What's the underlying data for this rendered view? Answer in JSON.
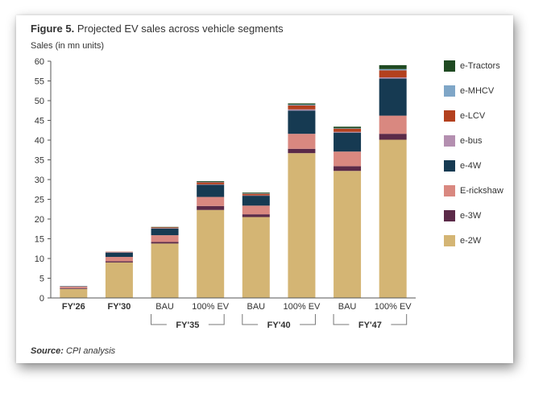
{
  "figure": {
    "label": "Figure 5.",
    "title": "Projected EV sales across vehicle segments"
  },
  "source": {
    "label": "Source:",
    "text": "CPI analysis"
  },
  "chart_data": {
    "type": "bar",
    "stacked": true,
    "title": "Figure 5. Projected EV sales across vehicle segments",
    "ylabel": "Sales (in mn units)",
    "xlabel": "",
    "ylim": [
      0,
      60
    ],
    "yticks": [
      0,
      5,
      10,
      15,
      20,
      25,
      30,
      35,
      40,
      45,
      50,
      55,
      60
    ],
    "grid": false,
    "legend_position": "right",
    "categories": [
      "FY'26",
      "FY'30",
      "BAU",
      "100% EV",
      "BAU",
      "100% EV",
      "BAU",
      "100% EV"
    ],
    "category_bold": [
      true,
      true,
      false,
      false,
      false,
      false,
      false,
      false
    ],
    "groups": [
      {
        "label": "FY'35",
        "categories": [
          2,
          3
        ]
      },
      {
        "label": "FY'40",
        "categories": [
          4,
          5
        ]
      },
      {
        "label": "FY'47",
        "categories": [
          6,
          7
        ]
      }
    ],
    "series": [
      {
        "name": "e-2W",
        "color": "#d4b574",
        "values": [
          2.3,
          9.0,
          13.8,
          22.3,
          20.5,
          36.7,
          32.2,
          40.1
        ]
      },
      {
        "name": "e-3W",
        "color": "#5b2a48",
        "values": [
          0.2,
          0.3,
          0.4,
          1.0,
          0.7,
          1.1,
          1.2,
          1.5
        ]
      },
      {
        "name": "E-rickshaw",
        "color": "#d98880",
        "values": [
          0.4,
          1.1,
          1.7,
          2.3,
          2.2,
          3.8,
          3.7,
          4.6
        ]
      },
      {
        "name": "e-4W",
        "color": "#163a52",
        "values": [
          0.1,
          1.1,
          1.7,
          3.1,
          2.5,
          5.9,
          4.8,
          9.4
        ]
      },
      {
        "name": "e-bus",
        "color": "#b48fb0",
        "values": [
          0.0,
          0.1,
          0.1,
          0.1,
          0.1,
          0.3,
          0.2,
          0.3
        ]
      },
      {
        "name": "e-LCV",
        "color": "#b3401e",
        "values": [
          0.0,
          0.1,
          0.2,
          0.5,
          0.4,
          1.0,
          0.8,
          1.8
        ]
      },
      {
        "name": "e-MHCV",
        "color": "#7fa6c7",
        "values": [
          0.0,
          0.0,
          0.0,
          0.1,
          0.1,
          0.2,
          0.1,
          0.3
        ]
      },
      {
        "name": "e-Tractors",
        "color": "#1f4a22",
        "values": [
          0.0,
          0.0,
          0.1,
          0.2,
          0.2,
          0.3,
          0.4,
          1.0
        ]
      }
    ]
  }
}
